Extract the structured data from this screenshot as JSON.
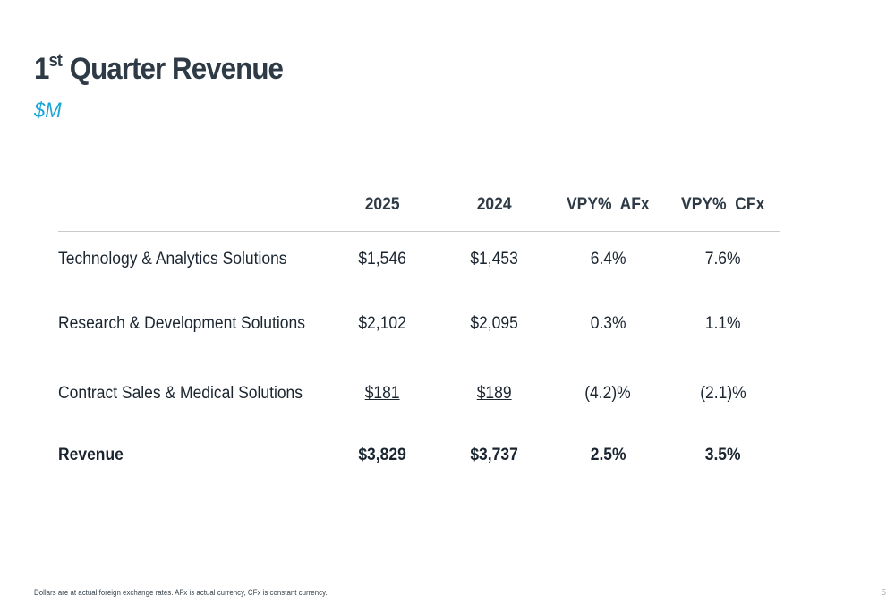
{
  "slide": {
    "title_prefix": "1",
    "title_superscript": "st",
    "title_main": " Quarter Revenue",
    "subtitle": "$M",
    "accent_color": "#19a6d8",
    "title_color": "#2e3a45"
  },
  "table": {
    "columns": [
      "",
      "2025",
      "2024",
      "VPY%  AFx",
      "VPY%  CFx"
    ],
    "rows": [
      {
        "label": "Technology & Analytics Solutions",
        "y2025": "$1,546",
        "y2024": "$1,453",
        "vpy_afx": "6.4%",
        "vpy_cfx": "7.6%"
      },
      {
        "label": "Research & Development Solutions",
        "y2025": "$2,102",
        "y2024": "$2,095",
        "vpy_afx": "0.3%",
        "vpy_cfx": "1.1%"
      },
      {
        "label": "Contract Sales & Medical Solutions",
        "y2025": "$181",
        "y2024": "$189",
        "vpy_afx": "(4.2)%",
        "vpy_cfx": "(2.1)%"
      },
      {
        "label": "Revenue",
        "y2025": "$3,829",
        "y2024": "$3,737",
        "vpy_afx": "2.5%",
        "vpy_cfx": "3.5%"
      }
    ]
  },
  "footnote": "Dollars are at actual foreign exchange rates. AFx is actual currency, CFx is constant currency.",
  "page_number": "5"
}
